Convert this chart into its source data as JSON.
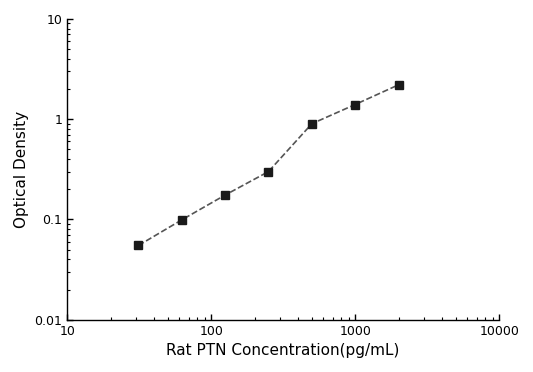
{
  "x": [
    31.25,
    62.5,
    125,
    250,
    500,
    1000,
    2000
  ],
  "y": [
    0.055,
    0.099,
    0.175,
    0.3,
    0.9,
    1.4,
    2.2
  ],
  "xlabel": "Rat PTN Concentration(pg/mL)",
  "ylabel": "Optical Density",
  "xlim": [
    10,
    10000
  ],
  "ylim": [
    0.01,
    10
  ],
  "marker": "s",
  "marker_color": "#1a1a1a",
  "line_color": "#555555",
  "marker_size": 6,
  "line_width": 1.2,
  "background_color": "#ffffff",
  "title": ""
}
